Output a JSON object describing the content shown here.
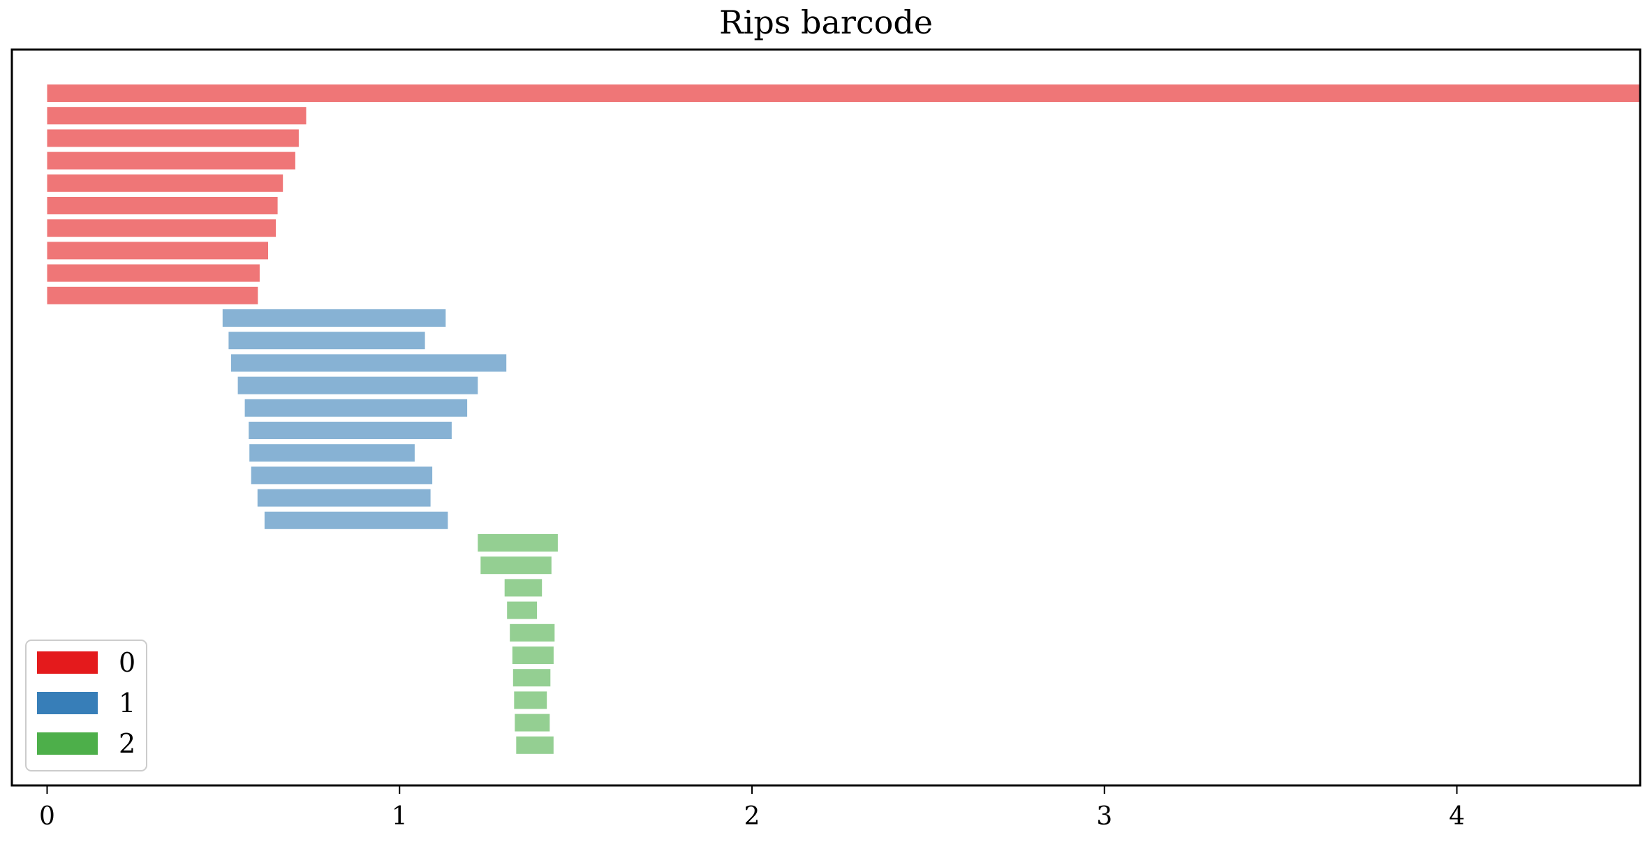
{
  "chart_data": {
    "type": "bar",
    "orientation": "horizontal",
    "title": "Rips barcode",
    "xlabel": "",
    "ylabel": "",
    "xlim": [
      -0.1,
      4.52
    ],
    "x_ticks": [
      0,
      1,
      2,
      3,
      4
    ],
    "grid": false,
    "legend_position": "lower-left",
    "series": [
      {
        "name": "0",
        "color": "#e41a1c",
        "bars": [
          {
            "birth": 0,
            "death": 4.52
          },
          {
            "birth": 0,
            "death": 0.735
          },
          {
            "birth": 0,
            "death": 0.714
          },
          {
            "birth": 0,
            "death": 0.704
          },
          {
            "birth": 0,
            "death": 0.669
          },
          {
            "birth": 0,
            "death": 0.654
          },
          {
            "birth": 0,
            "death": 0.649
          },
          {
            "birth": 0,
            "death": 0.627
          },
          {
            "birth": 0,
            "death": 0.603
          },
          {
            "birth": 0,
            "death": 0.598
          }
        ]
      },
      {
        "name": "1",
        "color": "#377eb8",
        "bars": [
          {
            "birth": 0.498,
            "death": 1.131
          },
          {
            "birth": 0.515,
            "death": 1.072
          },
          {
            "birth": 0.522,
            "death": 1.303
          },
          {
            "birth": 0.541,
            "death": 1.222
          },
          {
            "birth": 0.561,
            "death": 1.192
          },
          {
            "birth": 0.572,
            "death": 1.148
          },
          {
            "birth": 0.574,
            "death": 1.043
          },
          {
            "birth": 0.579,
            "death": 1.093
          },
          {
            "birth": 0.597,
            "death": 1.088
          },
          {
            "birth": 0.617,
            "death": 1.137
          }
        ]
      },
      {
        "name": "2",
        "color": "#4daf4a",
        "bars": [
          {
            "birth": 1.222,
            "death": 1.449
          },
          {
            "birth": 1.23,
            "death": 1.431
          },
          {
            "birth": 1.298,
            "death": 1.404
          },
          {
            "birth": 1.305,
            "death": 1.39
          },
          {
            "birth": 1.313,
            "death": 1.44
          },
          {
            "birth": 1.32,
            "death": 1.437
          },
          {
            "birth": 1.322,
            "death": 1.428
          },
          {
            "birth": 1.325,
            "death": 1.418
          },
          {
            "birth": 1.327,
            "death": 1.426
          },
          {
            "birth": 1.331,
            "death": 1.437
          }
        ]
      }
    ]
  }
}
